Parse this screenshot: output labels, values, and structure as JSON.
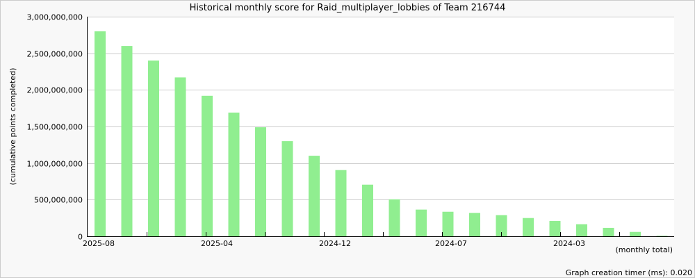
{
  "chart_data": {
    "type": "bar",
    "title": "Historical monthly score for Raid_multiplayer_lobbies of Team 216744",
    "ylabel": "(cumulative points completed)",
    "xlabel": "(monthly total)",
    "ylim": [
      0,
      3000000000
    ],
    "yticks": [
      0,
      500000000,
      1000000000,
      1500000000,
      2000000000,
      2500000000,
      3000000000
    ],
    "ytick_labels": [
      "0",
      "500,000,000",
      "1,000,000,000",
      "1,500,000,000",
      "2,000,000,000",
      "2,500,000,000",
      "3,000,000,000"
    ],
    "grid": true,
    "bar_color": "#90ee90",
    "categories": [
      "2025-08",
      "2025-07",
      "2025-06",
      "2025-05",
      "2025-04",
      "2025-03",
      "2025-02",
      "2025-01",
      "2024-12",
      "2024-11",
      "2024-10",
      "2024-09",
      "2024-08",
      "2024-07",
      "2024-06",
      "2024-05",
      "2024-04",
      "2024-03",
      "2024-02",
      "2024-01",
      "2023-12",
      "2023-11"
    ],
    "x_tick_labels": [
      "2025-08",
      "2025-04",
      "2024-12",
      "2024-07",
      "2024-03"
    ],
    "values": [
      2800000000,
      2600000000,
      2400000000,
      2170000000,
      1920000000,
      1690000000,
      1490000000,
      1300000000,
      1100000000,
      905000000,
      705000000,
      505000000,
      365000000,
      335000000,
      320000000,
      290000000,
      250000000,
      210000000,
      165000000,
      115000000,
      60000000,
      8000000
    ]
  },
  "footer": {
    "timer": "Graph creation timer (ms): 0.020"
  }
}
